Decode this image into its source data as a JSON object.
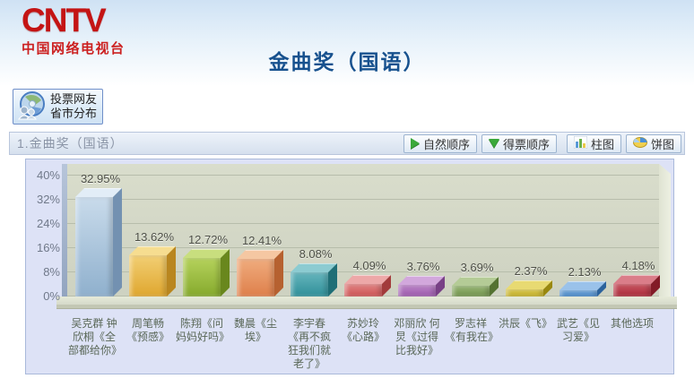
{
  "brand": {
    "logo_text": "CNTV",
    "logo_subtitle": "中国网络电视台"
  },
  "page_title": "金曲奖（国语）",
  "vote_button": {
    "line1": "投票网友",
    "line2": "省市分布"
  },
  "section": {
    "title": "1.金曲奖（国语）"
  },
  "toolbar": {
    "natural_order": "自然顺序",
    "vote_order": "得票顺序",
    "bar_chart": "柱图",
    "pie_chart": "饼图"
  },
  "chart_data": {
    "type": "bar",
    "title": "1.金曲奖（国语）",
    "categories": [
      "吴克群 钟欣桐《全部都给你》",
      "周笔畅《预感》",
      "陈翔《问妈妈好吗》",
      "魏晨《尘埃》",
      "李宇春《再不疯狂我们就老了》",
      "苏妙玲《心路》",
      "邓丽欣 何炅《过得比我好》",
      "罗志祥《有我在》",
      "洪辰《飞》",
      "武艺《见习爱》",
      "其他选项"
    ],
    "values": [
      32.95,
      13.62,
      12.72,
      12.41,
      8.08,
      4.09,
      3.76,
      3.69,
      2.37,
      2.13,
      4.18
    ],
    "value_labels": [
      "32.95%",
      "13.62%",
      "12.72%",
      "12.41%",
      "8.08%",
      "4.09%",
      "3.76%",
      "3.69%",
      "2.37%",
      "2.13%",
      "4.18%"
    ],
    "xlabel": "",
    "ylabel": "",
    "ylim": [
      0,
      40
    ],
    "yticks": [
      "0%",
      "8%",
      "16%",
      "24%",
      "32%",
      "40%"
    ],
    "grid": true,
    "legend": false,
    "bar_colors": [
      {
        "front_light": "#c9dbeb",
        "front": "#8fb0cd",
        "top": "#e2edf7",
        "side": "#7391b1"
      },
      {
        "front_light": "#f2cf74",
        "front": "#dfa62e",
        "top": "#f6dd90",
        "side": "#b9861f"
      },
      {
        "front_light": "#b5d25c",
        "front": "#85a92c",
        "top": "#c8de7e",
        "side": "#69871d"
      },
      {
        "front_light": "#f0ac7e",
        "front": "#de7f4a",
        "top": "#f5c7a2",
        "side": "#b66130"
      },
      {
        "front_light": "#66b5bd",
        "front": "#2f8f98",
        "top": "#8ccbd1",
        "side": "#1f6e76"
      },
      {
        "front_light": "#e28585",
        "front": "#cb5151",
        "top": "#eda8a8",
        "side": "#a23b3b"
      },
      {
        "front_light": "#bd87c9",
        "front": "#9a57aa",
        "top": "#d2a7dc",
        "side": "#784086"
      },
      {
        "front_light": "#9ab878",
        "front": "#6e9048",
        "top": "#b4cb96",
        "side": "#547231"
      },
      {
        "front_light": "#dcca52",
        "front": "#bfab20",
        "top": "#e8da72",
        "side": "#99880f"
      },
      {
        "front_light": "#77abdd",
        "front": "#3f81c4",
        "top": "#9ac2ea",
        "side": "#2b629c"
      },
      {
        "front_light": "#ca5764",
        "front": "#a82937",
        "top": "#da7d89",
        "side": "#821b27"
      }
    ],
    "accent_colors": {
      "brand_red": "#c41414",
      "title_blue": "#17518e",
      "arrow_green": "#3aa83a"
    }
  }
}
